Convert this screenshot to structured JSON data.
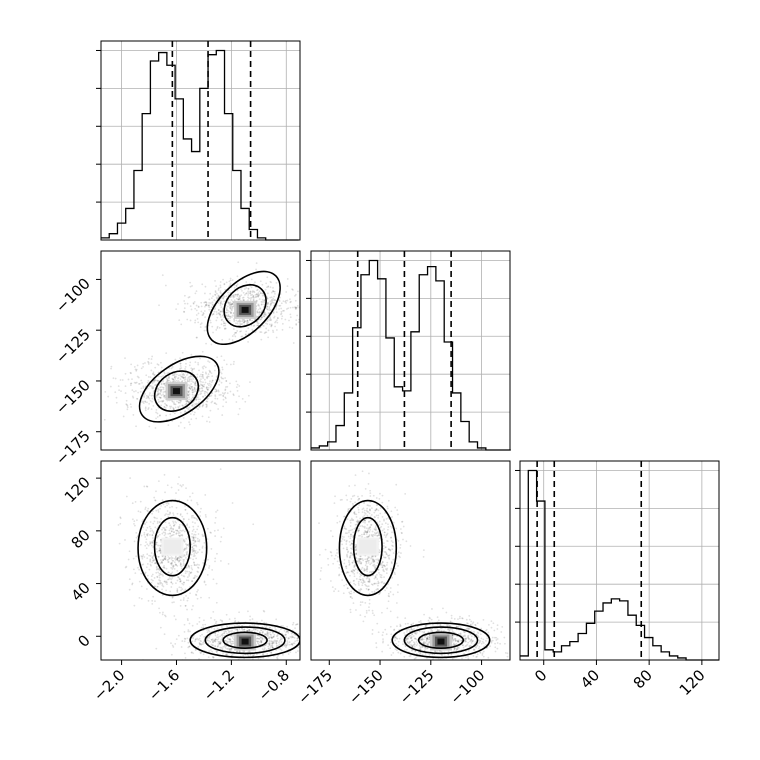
{
  "chart_data": {
    "type": "corner-plot",
    "title": "",
    "parameters": [
      "",
      "",
      ""
    ],
    "grid": true,
    "colors": {
      "line": "#000000",
      "grid": "#b0b0b0",
      "points": "#000000"
    },
    "ranges": [
      [
        -2.15,
        -0.7
      ],
      [
        -184,
        -86
      ],
      [
        -18,
        133
      ]
    ],
    "ticks": [
      {
        "values": [
          -2.0,
          -1.6,
          -1.2,
          -0.8
        ],
        "labels": [
          "−2.0",
          "−1.6",
          "−1.2",
          "−0.8"
        ]
      },
      {
        "values": [
          -175,
          -150,
          -125,
          -100
        ],
        "labels": [
          "−175",
          "−150",
          "−125",
          "−100"
        ]
      },
      {
        "values": [
          0,
          40,
          80,
          120
        ],
        "labels": [
          "0",
          "40",
          "80",
          "120"
        ]
      }
    ],
    "histograms": [
      {
        "parameter": 0,
        "bin_edges": [
          -2.15,
          -2.09,
          -2.03,
          -1.97,
          -1.91,
          -1.85,
          -1.79,
          -1.73,
          -1.67,
          -1.61,
          -1.55,
          -1.49,
          -1.43,
          -1.37,
          -1.31,
          -1.25,
          -1.19,
          -1.13,
          -1.07,
          -1.01,
          -0.95,
          -0.89,
          -0.83,
          -0.77,
          -0.71
        ],
        "counts": [
          0.01,
          0.03,
          0.08,
          0.15,
          0.33,
          0.6,
          0.85,
          0.89,
          0.83,
          0.67,
          0.48,
          0.42,
          0.72,
          0.88,
          0.9,
          0.6,
          0.33,
          0.15,
          0.05,
          0.01,
          0,
          0,
          0,
          0
        ],
        "quantiles": [
          -1.63,
          -1.37,
          -1.06
        ]
      },
      {
        "parameter": 1,
        "bin_edges": [
          -184,
          -179.9,
          -175.8,
          -171.7,
          -167.6,
          -163.5,
          -159.4,
          -155.3,
          -151.2,
          -147.1,
          -143,
          -138.9,
          -134.8,
          -130.7,
          -126.6,
          -122.5,
          -118.4,
          -114.3,
          -110.2,
          -106.1,
          -102,
          -97.9,
          -93.8,
          -89.7,
          -85.6
        ],
        "counts": [
          0.01,
          0.02,
          0.04,
          0.12,
          0.28,
          0.6,
          0.86,
          0.93,
          0.84,
          0.55,
          0.31,
          0.29,
          0.58,
          0.86,
          0.9,
          0.83,
          0.53,
          0.28,
          0.14,
          0.04,
          0.01,
          0,
          0,
          0
        ],
        "quantiles": [
          -161,
          -138,
          -115
        ]
      },
      {
        "parameter": 2,
        "bin_edges": [
          -18,
          -11.7,
          -5.4,
          0.9,
          7.2,
          13.5,
          19.8,
          26.1,
          32.4,
          38.7,
          45,
          51.3,
          57.6,
          63.9,
          70.2,
          76.5,
          82.8,
          89.1,
          95.4,
          101.7,
          108,
          114.3,
          120.6,
          126.9,
          133.2
        ],
        "counts": [
          0.02,
          0.93,
          0.78,
          0.05,
          0.04,
          0.07,
          0.09,
          0.13,
          0.18,
          0.24,
          0.28,
          0.3,
          0.29,
          0.22,
          0.17,
          0.11,
          0.07,
          0.04,
          0.02,
          0.01,
          0,
          0,
          0,
          0
        ],
        "quantiles": [
          -5,
          8,
          74
        ]
      }
    ],
    "pairs": [
      {
        "x": 0,
        "y": 1,
        "modes": [
          {
            "cx": -1.1,
            "cy": -115,
            "density": 1.0
          },
          {
            "cx": -1.6,
            "cy": -155,
            "density": 0.9
          }
        ],
        "contours": [
          {
            "cx": -1.1,
            "cy": -113,
            "rx": 0.17,
            "ry": 9,
            "rotation": -45
          },
          {
            "cx": -1.11,
            "cy": -114,
            "rx": 0.33,
            "ry": 12,
            "rotation": -45
          },
          {
            "cx": -1.6,
            "cy": -155,
            "rx": 0.17,
            "ry": 9,
            "rotation": -35
          },
          {
            "cx": -1.58,
            "cy": -154,
            "rx": 0.33,
            "ry": 12,
            "rotation": -35
          }
        ]
      },
      {
        "x": 0,
        "y": 2,
        "modes": [
          {
            "cx": -1.1,
            "cy": -4,
            "density": 1.0
          },
          {
            "cx": -1.63,
            "cy": 68,
            "density": 0.15
          }
        ],
        "contours": [
          {
            "cx": -1.1,
            "cy": -3,
            "rx": 0.16,
            "ry": 6
          },
          {
            "cx": -1.1,
            "cy": -3,
            "rx": 0.29,
            "ry": 10
          },
          {
            "cx": -1.1,
            "cy": -3,
            "rx": 0.4,
            "ry": 13
          },
          {
            "cx": -1.63,
            "cy": 68,
            "rx": 0.13,
            "ry": 22
          },
          {
            "cx": -1.63,
            "cy": 67,
            "rx": 0.25,
            "ry": 36
          }
        ]
      },
      {
        "x": 1,
        "y": 2,
        "modes": [
          {
            "cx": -120,
            "cy": -4,
            "density": 1.0
          },
          {
            "cx": -156,
            "cy": 68,
            "density": 0.15
          }
        ],
        "contours": [
          {
            "cx": -120,
            "cy": -3,
            "rx": 11,
            "ry": 6
          },
          {
            "cx": -120,
            "cy": -3,
            "rx": 18,
            "ry": 10
          },
          {
            "cx": -120,
            "cy": -3,
            "rx": 24,
            "ry": 13
          },
          {
            "cx": -156,
            "cy": 68,
            "rx": 7,
            "ry": 22
          },
          {
            "cx": -156,
            "cy": 67,
            "rx": 14,
            "ry": 36
          }
        ]
      }
    ]
  }
}
